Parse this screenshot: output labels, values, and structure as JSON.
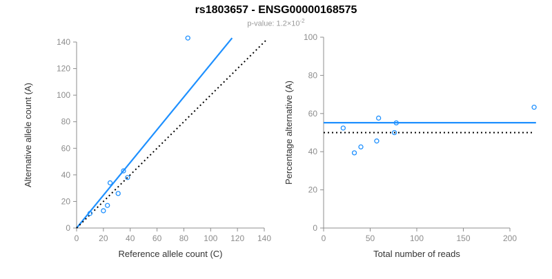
{
  "title": "rs1803657 - ENSG00000168575",
  "subtitle": {
    "prefix": "p-value: 1.2×10",
    "exponent": "-2"
  },
  "colors": {
    "accent_blue": "#1E90FF",
    "dotted_black": "#000000",
    "axis_gray": "#8c8c8c",
    "tick_label_gray": "#8c8c8c",
    "axis_title_color": "#333333"
  },
  "chart_data": [
    {
      "type": "scatter",
      "panel": "left",
      "xlabel": "Reference allele count (C)",
      "ylabel": "Alternative allele count (A)",
      "xlim": [
        0,
        140
      ],
      "ylim": [
        0,
        140
      ],
      "xticks": [
        0,
        20,
        40,
        60,
        80,
        100,
        120,
        140
      ],
      "yticks": [
        0,
        20,
        40,
        60,
        80,
        100,
        120,
        140
      ],
      "grid": false,
      "points": [
        [
          10,
          11
        ],
        [
          20,
          13
        ],
        [
          23,
          17
        ],
        [
          25,
          34
        ],
        [
          31,
          26
        ],
        [
          35,
          43
        ],
        [
          38,
          38
        ],
        [
          83,
          143
        ]
      ],
      "lines": [
        {
          "name": "fit-line",
          "style": "solid",
          "color_key": "accent_blue",
          "from": [
            0,
            0
          ],
          "to": [
            116,
            143
          ]
        },
        {
          "name": "identity-line",
          "style": "dotted",
          "color_key": "dotted_black",
          "from": [
            0,
            0
          ],
          "to": [
            142,
            142
          ]
        }
      ]
    },
    {
      "type": "scatter",
      "panel": "right",
      "xlabel": "Total number of reads",
      "ylabel": "Percentage alternative (A)",
      "xlim": [
        0,
        200
      ],
      "ylim": [
        0,
        100
      ],
      "xticks": [
        0,
        50,
        100,
        150,
        200
      ],
      "yticks": [
        0,
        20,
        40,
        60,
        80,
        100
      ],
      "grid": false,
      "points": [
        [
          21,
          52.4
        ],
        [
          33,
          39.4
        ],
        [
          40,
          42.5
        ],
        [
          57,
          45.6
        ],
        [
          59,
          57.6
        ],
        [
          76,
          50
        ],
        [
          78,
          55.1
        ],
        [
          226,
          63.3
        ]
      ],
      "lines": [
        {
          "name": "mean-line",
          "style": "solid",
          "color_key": "accent_blue",
          "from": [
            0,
            55.2
          ],
          "to": [
            228,
            55.2
          ]
        },
        {
          "name": "expected-line",
          "style": "dotted",
          "color_key": "dotted_black",
          "from": [
            0,
            50
          ],
          "to": [
            225,
            50
          ]
        }
      ]
    }
  ]
}
